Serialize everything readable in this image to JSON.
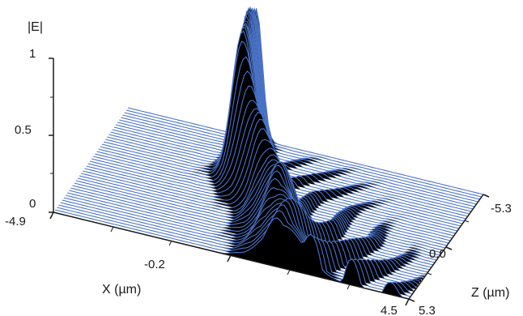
{
  "chart_data": {
    "type": "surface",
    "zlabel": "|E|",
    "xlabel": "X (µm)",
    "ylabel": "Z (µm)",
    "zlim": [
      0,
      1
    ],
    "xlim": [
      -4.9,
      4.5
    ],
    "ylim": [
      -5.3,
      5.3
    ],
    "z_ticks": [
      "0",
      "0.5",
      "1"
    ],
    "x_ticks": [
      "-4.9",
      "-0.2",
      "4.5"
    ],
    "y_ticks": [
      "-5.3",
      "0.0",
      "5.3"
    ],
    "colors": {
      "wire": "#4a73c8",
      "fill": "#000000",
      "axis": "#1a1a1a"
    },
    "surface": {
      "slices": 44,
      "points_per_slice": 120,
      "profile": [
        {
          "z": -5.3,
          "peak_x": -1.5,
          "amplitude": 0.85
        },
        {
          "z": -3.0,
          "peak_x": -1.3,
          "amplitude": 1.0
        },
        {
          "z": -1.2,
          "peak_x": -1.1,
          "amplitude": 0.95
        },
        {
          "z": 0.0,
          "peak_x": -0.6,
          "amplitude": 0.6
        },
        {
          "z": 1.5,
          "peak_x": 0.2,
          "amplitude": 0.45
        },
        {
          "z": 3.5,
          "peak_x": 0.8,
          "amplitude": 0.35
        },
        {
          "z": 5.3,
          "peak_x": 1.2,
          "amplitude": 0.28
        }
      ]
    }
  }
}
